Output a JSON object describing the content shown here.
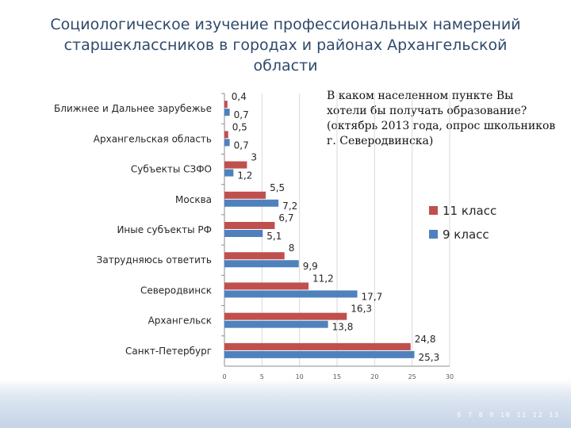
{
  "slide": {
    "title": "Социологическое изучение профессиональных намерений старшеклассников в городах и районах  Архангельской области",
    "question": "В каком населенном пункте Вы хотели бы получать образование? (октябрь 2013 года, опрос школьников г. Северодвинска)",
    "footer_marks": "6 7 8 9 10 11 12 13"
  },
  "chart_data": {
    "type": "bar",
    "orientation": "horizontal",
    "categories": [
      "Ближнее и Дальнее зарубежье",
      "Архангельская область",
      "Субъекты СЗФО",
      "Москва",
      "Иные субъекты РФ",
      "Затрудняюсь ответить",
      "Северодвинск",
      "Архангельск",
      "Санкт-Петербург"
    ],
    "series": [
      {
        "name": "11 класс",
        "values": [
          0.4,
          0.5,
          3,
          5.5,
          6.7,
          8,
          11.2,
          16.3,
          24.8
        ],
        "labels": [
          "0,4",
          "0,5",
          "3",
          "5,5",
          "6,7",
          "8",
          "11,2",
          "16,3",
          "24,8"
        ],
        "color": "#c0504d"
      },
      {
        "name": "9 класс",
        "values": [
          0.7,
          0.7,
          1.2,
          7.2,
          5.1,
          9.9,
          17.7,
          13.8,
          25.3
        ],
        "labels": [
          "0,7",
          "0,7",
          "1,2",
          "7,2",
          "5,1",
          "9,9",
          "17,7",
          "13,8",
          "25,3"
        ],
        "color": "#4f81bd"
      }
    ],
    "xlim": [
      0,
      30
    ],
    "xticks": [
      "0",
      "5",
      "10",
      "15",
      "20",
      "25",
      "30"
    ],
    "grid": true,
    "legend": "right"
  }
}
